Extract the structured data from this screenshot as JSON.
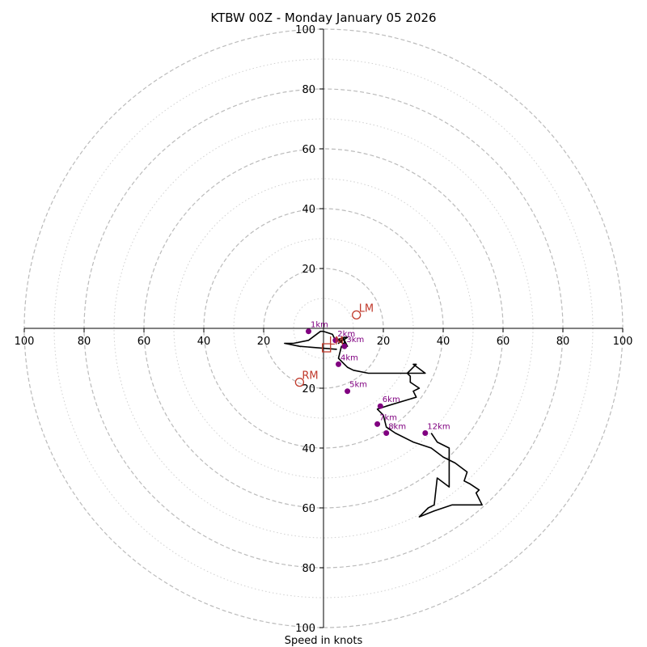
{
  "chart_data": {
    "type": "hodograph",
    "title": "KTBW 00Z - Monday January 05 2026",
    "xlabel": "Speed in knots",
    "range": [
      -100,
      100
    ],
    "major_rings": [
      20,
      40,
      60,
      80,
      100
    ],
    "minor_rings": [
      10,
      30,
      50,
      70,
      90
    ],
    "x_tick_labels": [
      "100",
      "80",
      "60",
      "40",
      "20",
      "20",
      "40",
      "60",
      "80",
      "100"
    ],
    "x_tick_values": [
      -100,
      -80,
      -60,
      -40,
      -20,
      20,
      40,
      60,
      80,
      100
    ],
    "y_tick_labels": [
      "100",
      "80",
      "60",
      "40",
      "20",
      "20",
      "40",
      "60",
      "80",
      "100"
    ],
    "y_tick_values": [
      100,
      80,
      60,
      40,
      20,
      -20,
      -40,
      -60,
      -80,
      -100
    ],
    "hodograph": {
      "u": [
        4.5,
        -8,
        -13,
        -10,
        -5,
        -1,
        0,
        3,
        4,
        7,
        7,
        5,
        8,
        7,
        6,
        5,
        8,
        7,
        7,
        6,
        5,
        7,
        8,
        10,
        15,
        20,
        27,
        34,
        30,
        31,
        30,
        28,
        29,
        29,
        29,
        32,
        30,
        31,
        21,
        21,
        18,
        20,
        21,
        24,
        30,
        36,
        40,
        44,
        48,
        47,
        49,
        52,
        51,
        53,
        43,
        37,
        32,
        35,
        37,
        38,
        42,
        42,
        38,
        36
      ],
      "v": [
        -7,
        -6,
        -5,
        -5,
        -4,
        -1,
        -1,
        -2,
        -4,
        -3,
        -3,
        -5,
        -3,
        -3,
        -4,
        -4,
        -6,
        -4,
        -6,
        -6,
        -10,
        -12,
        -13,
        -14,
        -15,
        -15,
        -15,
        -15,
        -12,
        -12,
        -13,
        -15,
        -16,
        -17,
        -18,
        -20,
        -21,
        -23,
        -26,
        -26,
        -27,
        -29,
        -33,
        -35,
        -38,
        -40,
        -43,
        -45,
        -48,
        -51,
        -52,
        -54,
        -55,
        -59,
        -59,
        -61,
        -63,
        -60,
        -59,
        -50,
        -53,
        -40,
        -38,
        -35
      ]
    },
    "height_markers": [
      {
        "label": "1km",
        "u": -5,
        "v": -1
      },
      {
        "label": "2km",
        "u": 4,
        "v": -4
      },
      {
        "label": "3km",
        "u": 7,
        "v": -6
      },
      {
        "label": "4km",
        "u": 5,
        "v": -12
      },
      {
        "label": "5km",
        "u": 8,
        "v": -21
      },
      {
        "label": "6km",
        "u": 19,
        "v": -26
      },
      {
        "label": "7km",
        "u": 18,
        "v": -32
      },
      {
        "label": "8km",
        "u": 21,
        "v": -35
      },
      {
        "label": "12km",
        "u": 34,
        "v": -35
      }
    ],
    "storm_motions": [
      {
        "label": "LM",
        "u": 11,
        "v": 4.5
      },
      {
        "label": "RM",
        "u": -8,
        "v": -18
      }
    ],
    "mean_wind": {
      "label": "LM",
      "u": 1,
      "v": -6.5
    },
    "colors": {
      "trace": "#000000",
      "markers": "#800080",
      "storm_motion": "#c0392b",
      "major_ring": "#bbbbbb",
      "minor_ring": "#d0d0d0",
      "axis": "#000000"
    }
  }
}
